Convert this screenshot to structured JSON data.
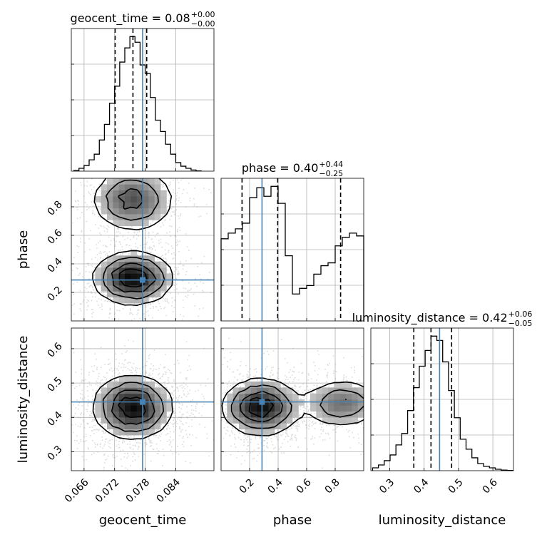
{
  "chart_data": {
    "type": "corner",
    "parameters": [
      "geocent_time",
      "phase",
      "luminosity_distance"
    ],
    "grid": true,
    "truth_color": "#4682b4",
    "contour_color": "#000000",
    "diagonal": [
      {
        "parameter": "geocent_time",
        "title": {
          "label": "geocent_time = 0.08",
          "upper": "+0.00",
          "lower": "−0.00"
        },
        "xlim": [
          0.0635,
          0.0915
        ],
        "quantiles": [
          0.0721,
          0.0756,
          0.0783
        ],
        "truth": 0.0775,
        "yticks": [
          0.25,
          0.5,
          0.75
        ],
        "histogram": {
          "bin_edges": [
            0.064,
            0.065,
            0.066,
            0.067,
            0.068,
            0.069,
            0.07,
            0.071,
            0.072,
            0.073,
            0.074,
            0.075,
            0.076,
            0.077,
            0.078,
            0.079,
            0.08,
            0.081,
            0.082,
            0.083,
            0.084,
            0.085,
            0.086,
            0.087,
            0.088,
            0.089
          ],
          "density": [
            0.004,
            0.02,
            0.04,
            0.08,
            0.12,
            0.22,
            0.33,
            0.48,
            0.6,
            0.77,
            0.87,
            0.95,
            0.91,
            0.75,
            0.69,
            0.52,
            0.36,
            0.28,
            0.19,
            0.12,
            0.06,
            0.035,
            0.02,
            0.008,
            0.002
          ]
        }
      },
      {
        "parameter": "phase",
        "title": {
          "label": "phase = 0.40",
          "upper": "+0.44",
          "lower": "−0.25"
        },
        "xlim": [
          0.0,
          1.0
        ],
        "quantiles": [
          0.147,
          0.397,
          0.838
        ],
        "truth": 0.287,
        "yticks": [
          0.25,
          0.5,
          0.75
        ],
        "histogram": {
          "bin_edges": [
            0.0,
            0.05,
            0.1,
            0.15,
            0.2,
            0.25,
            0.3,
            0.35,
            0.4,
            0.45,
            0.5,
            0.55,
            0.6,
            0.65,
            0.7,
            0.75,
            0.8,
            0.85,
            0.9,
            0.95,
            1.0
          ],
          "density": [
            0.58,
            0.62,
            0.65,
            0.69,
            0.87,
            0.94,
            0.88,
            0.95,
            0.83,
            0.46,
            0.19,
            0.23,
            0.25,
            0.33,
            0.39,
            0.41,
            0.53,
            0.59,
            0.62,
            0.6
          ]
        }
      },
      {
        "parameter": "luminosity_distance",
        "title": {
          "label": "luminosity_distance = 0.42",
          "upper": "+0.06",
          "lower": "−0.05"
        },
        "xlim": [
          0.245,
          0.66
        ],
        "quantiles": [
          0.37,
          0.42,
          0.48
        ],
        "truth": 0.445,
        "yticks": [
          0.25,
          0.5,
          0.75
        ],
        "histogram": {
          "bin_edges": [
            0.25,
            0.267,
            0.284,
            0.301,
            0.318,
            0.335,
            0.352,
            0.369,
            0.386,
            0.403,
            0.42,
            0.437,
            0.454,
            0.471,
            0.488,
            0.505,
            0.522,
            0.539,
            0.556,
            0.573,
            0.59,
            0.607,
            0.624,
            0.641,
            0.658
          ],
          "density": [
            0.02,
            0.04,
            0.07,
            0.11,
            0.18,
            0.26,
            0.42,
            0.58,
            0.73,
            0.84,
            0.94,
            0.91,
            0.76,
            0.56,
            0.37,
            0.22,
            0.15,
            0.09,
            0.05,
            0.03,
            0.02,
            0.01,
            0.004,
            0.002
          ]
        }
      }
    ],
    "pairs": [
      {
        "x": "geocent_time",
        "y": "phase",
        "xlim": [
          0.0635,
          0.0915
        ],
        "ylim": [
          0.0,
          1.0
        ],
        "truth": [
          0.0775,
          0.287
        ],
        "modes": [
          {
            "center": [
              0.0756,
              0.3
            ],
            "spread": [
              0.0038,
              0.09
            ],
            "weight": 1.0
          },
          {
            "center": [
              0.0756,
              0.85
            ],
            "spread": [
              0.004,
              0.11
            ],
            "weight": 0.65
          }
        ]
      },
      {
        "x": "geocent_time",
        "y": "luminosity_distance",
        "xlim": [
          0.0635,
          0.0915
        ],
        "ylim": [
          0.245,
          0.66
        ],
        "truth": [
          0.0775,
          0.445
        ],
        "modes": [
          {
            "center": [
              0.0756,
              0.43
            ],
            "spread": [
              0.0038,
              0.045
            ],
            "weight": 1.0
          }
        ]
      },
      {
        "x": "phase",
        "y": "luminosity_distance",
        "xlim": [
          0.0,
          1.0
        ],
        "ylim": [
          0.245,
          0.66
        ],
        "truth": [
          0.287,
          0.445
        ],
        "modes": [
          {
            "center": [
              0.28,
              0.43
            ],
            "spread": [
              0.13,
              0.04
            ],
            "weight": 1.0
          },
          {
            "center": [
              0.85,
              0.44
            ],
            "spread": [
              0.14,
              0.035
            ],
            "weight": 0.55
          }
        ]
      }
    ],
    "ticks": {
      "geocent_time": {
        "values": [
          0.066,
          0.072,
          0.078,
          0.084
        ],
        "labels": [
          "0.066",
          "0.072",
          "0.078",
          "0.084"
        ]
      },
      "phase": {
        "values": [
          0.2,
          0.4,
          0.6,
          0.8
        ],
        "labels": [
          "0.2",
          "0.4",
          "0.6",
          "0.8"
        ]
      },
      "luminosity_distance": {
        "values": [
          0.3,
          0.4,
          0.5,
          0.6
        ],
        "labels": [
          "0.3",
          "0.4",
          "0.5",
          "0.6"
        ]
      }
    },
    "axis_labels": {
      "geocent_time": "geocent_time",
      "phase": "phase",
      "luminosity_distance": "luminosity_distance"
    }
  }
}
